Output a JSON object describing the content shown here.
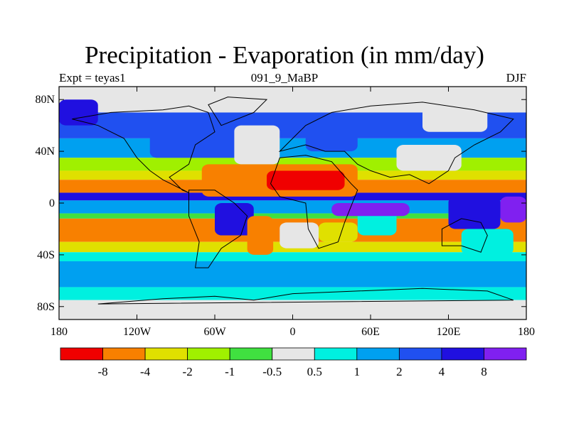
{
  "chart_data": {
    "type": "heatmap",
    "title": "Precipitation - Evaporation (in mm/day)",
    "subtitle_left": "Expt = teyas1",
    "subtitle_center": "091_9_MaBP",
    "subtitle_right": "DJF",
    "x_ticks": [
      {
        "value": -180,
        "label": "180"
      },
      {
        "value": -120,
        "label": "120W"
      },
      {
        "value": -60,
        "label": "60W"
      },
      {
        "value": 0,
        "label": "0"
      },
      {
        "value": 60,
        "label": "60E"
      },
      {
        "value": 120,
        "label": "120E"
      },
      {
        "value": 180,
        "label": "180"
      }
    ],
    "y_ticks": [
      {
        "value": 80,
        "label": "80N"
      },
      {
        "value": 40,
        "label": "40N"
      },
      {
        "value": 0,
        "label": "0"
      },
      {
        "value": -40,
        "label": "40S"
      },
      {
        "value": -80,
        "label": "80S"
      }
    ],
    "xlim": [
      -180,
      180
    ],
    "ylim": [
      -90,
      90
    ],
    "colorbar": {
      "colors": [
        "#f00000",
        "#f88000",
        "#e0e000",
        "#a0f000",
        "#40e040",
        "#e6e6e6",
        "#00f0e0",
        "#00a0f0",
        "#2050f0",
        "#2010e0",
        "#8020f0"
      ],
      "labels": [
        "-8",
        "-4",
        "-2",
        "-1",
        "-0.5",
        "0.5",
        "1",
        "2",
        "4",
        "8"
      ]
    },
    "zonal_bands": [
      {
        "lat": [
          70,
          90
        ],
        "level": 5
      },
      {
        "lat": [
          50,
          70
        ],
        "level": 8
      },
      {
        "lat": [
          35,
          50
        ],
        "level": 7
      },
      {
        "lat": [
          25,
          35
        ],
        "level": 3
      },
      {
        "lat": [
          18,
          25
        ],
        "level": 2
      },
      {
        "lat": [
          8,
          18
        ],
        "level": 1
      },
      {
        "lat": [
          2,
          8
        ],
        "level": 9
      },
      {
        "lat": [
          -8,
          2
        ],
        "level": 7
      },
      {
        "lat": [
          -12,
          -8
        ],
        "level": 4
      },
      {
        "lat": [
          -30,
          -12
        ],
        "level": 1
      },
      {
        "lat": [
          -38,
          -30
        ],
        "level": 2
      },
      {
        "lat": [
          -45,
          -38
        ],
        "level": 6
      },
      {
        "lat": [
          -65,
          -45
        ],
        "level": 7
      },
      {
        "lat": [
          -75,
          -65
        ],
        "level": 6
      },
      {
        "lat": [
          -90,
          -75
        ],
        "level": 5
      }
    ],
    "regions": [
      {
        "lon": [
          -70,
          50
        ],
        "lat": [
          5,
          30
        ],
        "level": 1
      },
      {
        "lon": [
          -20,
          40
        ],
        "lat": [
          10,
          25
        ],
        "level": 0
      },
      {
        "lon": [
          -110,
          -40
        ],
        "lat": [
          35,
          60
        ],
        "level": 8
      },
      {
        "lon": [
          -45,
          -10
        ],
        "lat": [
          30,
          60
        ],
        "level": 5
      },
      {
        "lon": [
          10,
          50
        ],
        "lat": [
          40,
          70
        ],
        "level": 8
      },
      {
        "lon": [
          80,
          130
        ],
        "lat": [
          25,
          45
        ],
        "level": 5
      },
      {
        "lon": [
          -60,
          -30
        ],
        "lat": [
          -25,
          0
        ],
        "level": 9
      },
      {
        "lon": [
          -35,
          -15
        ],
        "lat": [
          -40,
          -10
        ],
        "level": 1
      },
      {
        "lon": [
          -10,
          20
        ],
        "lat": [
          -35,
          -15
        ],
        "level": 5
      },
      {
        "lon": [
          20,
          50
        ],
        "lat": [
          -30,
          -15
        ],
        "level": 2
      },
      {
        "lon": [
          50,
          80
        ],
        "lat": [
          -25,
          -5
        ],
        "level": 6
      },
      {
        "lon": [
          120,
          160
        ],
        "lat": [
          -20,
          5
        ],
        "level": 9
      },
      {
        "lon": [
          160,
          180
        ],
        "lat": [
          -15,
          5
        ],
        "level": 10
      },
      {
        "lon": [
          30,
          90
        ],
        "lat": [
          -10,
          0
        ],
        "level": 10
      },
      {
        "lon": [
          -180,
          -150
        ],
        "lat": [
          60,
          80
        ],
        "level": 9
      },
      {
        "lon": [
          100,
          150
        ],
        "lat": [
          55,
          80
        ],
        "level": 5
      },
      {
        "lon": [
          130,
          170
        ],
        "lat": [
          -40,
          -20
        ],
        "level": 6
      }
    ],
    "land_outlines": [
      [
        [
          -170,
          65
        ],
        [
          -140,
          70
        ],
        [
          -100,
          72
        ],
        [
          -80,
          75
        ],
        [
          -65,
          70
        ],
        [
          -60,
          55
        ],
        [
          -75,
          45
        ],
        [
          -80,
          30
        ],
        [
          -95,
          20
        ],
        [
          -85,
          10
        ],
        [
          -80,
          8
        ],
        [
          -100,
          18
        ],
        [
          -110,
          25
        ],
        [
          -120,
          35
        ],
        [
          -130,
          50
        ],
        [
          -150,
          60
        ],
        [
          -170,
          65
        ]
      ],
      [
        [
          -80,
          10
        ],
        [
          -60,
          10
        ],
        [
          -45,
          0
        ],
        [
          -35,
          -10
        ],
        [
          -40,
          -25
        ],
        [
          -55,
          -35
        ],
        [
          -65,
          -50
        ],
        [
          -75,
          -50
        ],
        [
          -72,
          -30
        ],
        [
          -80,
          -10
        ],
        [
          -80,
          10
        ]
      ],
      [
        [
          -10,
          35
        ],
        [
          10,
          37
        ],
        [
          30,
          32
        ],
        [
          45,
          15
        ],
        [
          50,
          10
        ],
        [
          40,
          -15
        ],
        [
          35,
          -30
        ],
        [
          20,
          -35
        ],
        [
          12,
          -20
        ],
        [
          10,
          0
        ],
        [
          -10,
          5
        ],
        [
          -17,
          15
        ],
        [
          -10,
          35
        ]
      ],
      [
        [
          -10,
          40
        ],
        [
          0,
          50
        ],
        [
          10,
          60
        ],
        [
          30,
          70
        ],
        [
          60,
          75
        ],
        [
          100,
          78
        ],
        [
          140,
          72
        ],
        [
          170,
          65
        ],
        [
          160,
          55
        ],
        [
          140,
          45
        ],
        [
          125,
          35
        ],
        [
          120,
          25
        ],
        [
          105,
          15
        ],
        [
          90,
          22
        ],
        [
          75,
          20
        ],
        [
          60,
          25
        ],
        [
          50,
          30
        ],
        [
          40,
          40
        ],
        [
          25,
          40
        ],
        [
          10,
          45
        ],
        [
          -10,
          40
        ]
      ],
      [
        [
          115,
          -20
        ],
        [
          130,
          -12
        ],
        [
          145,
          -15
        ],
        [
          150,
          -25
        ],
        [
          145,
          -38
        ],
        [
          130,
          -33
        ],
        [
          115,
          -33
        ],
        [
          115,
          -20
        ]
      ],
      [
        [
          -60,
          -72
        ],
        [
          -30,
          -75
        ],
        [
          0,
          -70
        ],
        [
          50,
          -68
        ],
        [
          100,
          -66
        ],
        [
          150,
          -68
        ],
        [
          170,
          -75
        ],
        [
          -150,
          -78
        ],
        [
          -100,
          -74
        ],
        [
          -60,
          -72
        ]
      ],
      [
        [
          -55,
          60
        ],
        [
          -30,
          70
        ],
        [
          -20,
          80
        ],
        [
          -50,
          82
        ],
        [
          -65,
          76
        ],
        [
          -55,
          60
        ]
      ]
    ]
  }
}
